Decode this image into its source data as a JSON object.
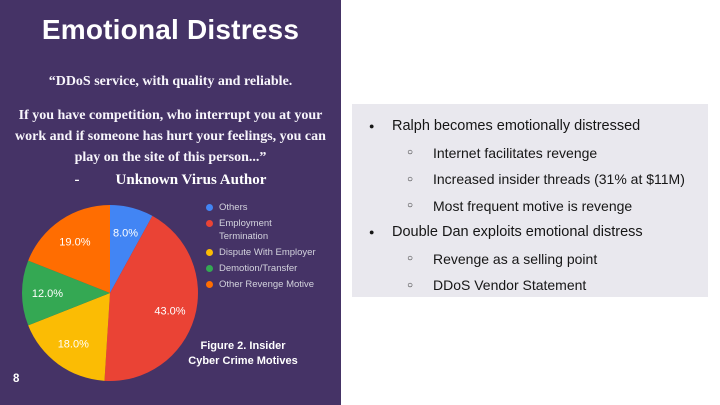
{
  "slide": {
    "page_number": "8",
    "title": "Emotional Distress",
    "quote_lead": "“DDoS service, with quality and reliable.",
    "quote_body_lines": [
      "If you have competition, who interrupt you at your",
      "work and if someone has hurt your feelings, you can",
      "play on the site of this person...”"
    ],
    "attribution_dash": "-",
    "attribution": "Unknown Virus Author",
    "caption_line1": "Figure 2. Insider",
    "caption_line2": "Cyber Crime Motives"
  },
  "chart_data": {
    "type": "pie",
    "title": "Figure 2. Insider Cyber Crime Motives",
    "labels": [
      "Others",
      "Employment Termination",
      "Dispute With Employer",
      "Demotion/Transfer",
      "Other Revenge Motive"
    ],
    "legend_display_lines": [
      [
        "Others"
      ],
      [
        "Employment",
        "Termination"
      ],
      [
        "Dispute With Employer"
      ],
      [
        "Demotion/Transfer"
      ],
      [
        "Other Revenge Motive"
      ]
    ],
    "values": [
      8.0,
      43.0,
      18.0,
      12.0,
      19.0
    ],
    "value_labels": [
      "8.0%",
      "43.0%",
      "18.0%",
      "12.0%",
      "19.0%"
    ],
    "colors": [
      "#4285f4",
      "#ea4335",
      "#fbbc04",
      "#34a853",
      "#ff6d01"
    ],
    "legend_position": "right",
    "start_angle_deg": 0,
    "direction": "clockwise"
  },
  "content": {
    "bullets": [
      {
        "level": 1,
        "text": "Ralph becomes emotionally distressed"
      },
      {
        "level": 2,
        "text": "Internet facilitates revenge"
      },
      {
        "level": 2,
        "text": "Increased insider threads (31% at $11M)"
      },
      {
        "level": 2,
        "text": "Most frequent motive is revenge"
      },
      {
        "level": 1,
        "text": "Double Dan exploits emotional distress"
      },
      {
        "level": 2,
        "text": "Revenge as a selling point"
      },
      {
        "level": 2,
        "text": "DDoS Vendor Statement"
      }
    ],
    "glyph_l1": "●",
    "glyph_l2": "○"
  },
  "colors": {
    "panel_bg": "#453366",
    "content_box_bg": "#e9e8ee",
    "title_text": "#ffffff",
    "legend_text": "#d3d3dd",
    "body_text": "#161616"
  }
}
